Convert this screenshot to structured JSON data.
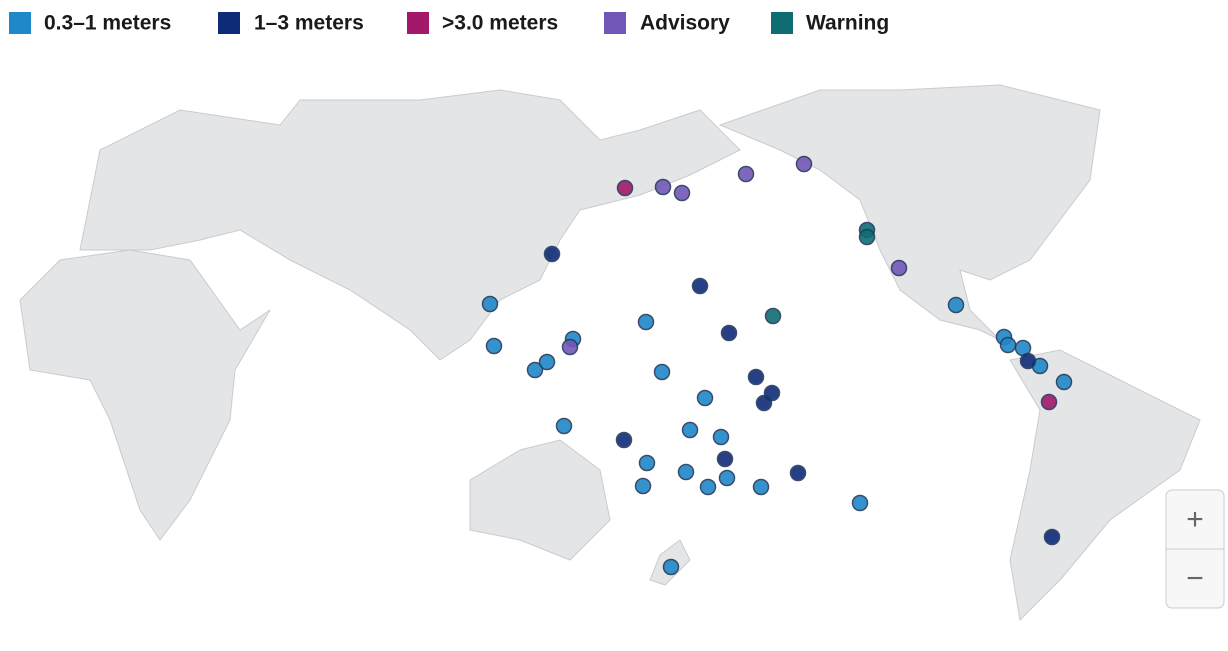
{
  "legend": [
    {
      "label": "0.3–1 meters",
      "color": "#1f88c9"
    },
    {
      "label": "1–3 meters",
      "color": "#0f2b78"
    },
    {
      "label": ">3.0 meters",
      "color": "#a3186b"
    },
    {
      "label": "Advisory",
      "color": "#7357b8"
    },
    {
      "label": "Warning",
      "color": "#0e6d73"
    }
  ],
  "zoom": {
    "in": "+",
    "out": "−"
  }
}
